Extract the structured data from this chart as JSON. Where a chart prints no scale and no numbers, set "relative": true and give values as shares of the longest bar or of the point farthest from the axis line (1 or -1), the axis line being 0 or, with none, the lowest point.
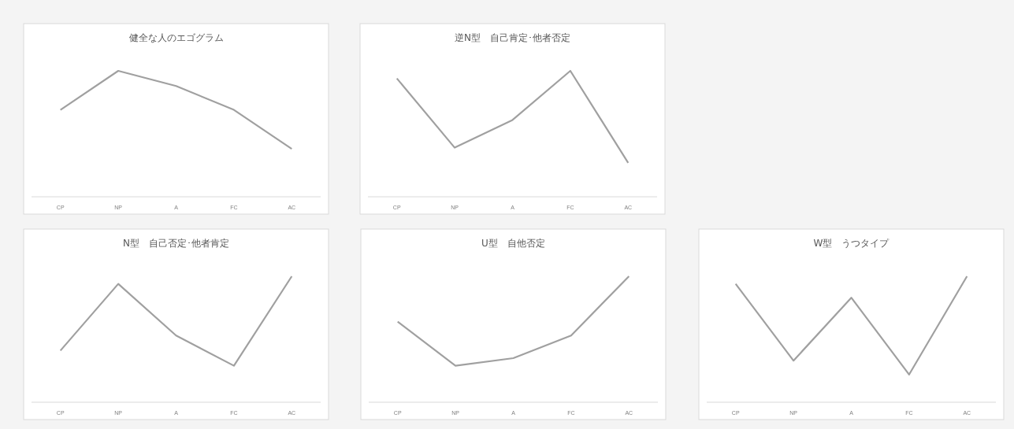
{
  "chart_data": [
    {
      "type": "line",
      "title": "健全な人のエゴグラム",
      "categories": [
        "CP",
        "NP",
        "A",
        "FC",
        "AC"
      ],
      "relative": true,
      "series": [
        {
          "color": "#a0a0a0",
          "values": [
            0.69,
            1,
            0.88,
            0.69,
            0.38
          ]
        }
      ]
    },
    {
      "type": "line",
      "title": "逆N型　自己肯定･他者否定",
      "categories": [
        "CP",
        "NP",
        "A",
        "FC",
        "AC"
      ],
      "relative": true,
      "series": [
        {
          "color": "#a0a0a0",
          "values": [
            0.94,
            0.39,
            0.61,
            1,
            0.27
          ]
        }
      ]
    },
    {
      "type": "line",
      "title": "N型　自己否定･他者肯定",
      "categories": [
        "CP",
        "NP",
        "A",
        "FC",
        "AC"
      ],
      "relative": true,
      "series": [
        {
          "color": "#a0a0a0",
          "values": [
            0.41,
            0.94,
            0.53,
            0.29,
            1
          ]
        }
      ]
    },
    {
      "type": "line",
      "title": "U型　自他否定",
      "categories": [
        "CP",
        "NP",
        "A",
        "FC",
        "AC"
      ],
      "relative": true,
      "series": [
        {
          "color": "#a0a0a0",
          "values": [
            0.64,
            0.29,
            0.35,
            0.53,
            1
          ]
        }
      ]
    },
    {
      "type": "line",
      "title": "W型　うつタイプ",
      "categories": [
        "CP",
        "NP",
        "A",
        "FC",
        "AC"
      ],
      "relative": true,
      "series": [
        {
          "color": "#a0a0a0",
          "values": [
            0.94,
            0.33,
            0.83,
            0.22,
            1
          ]
        }
      ]
    }
  ]
}
